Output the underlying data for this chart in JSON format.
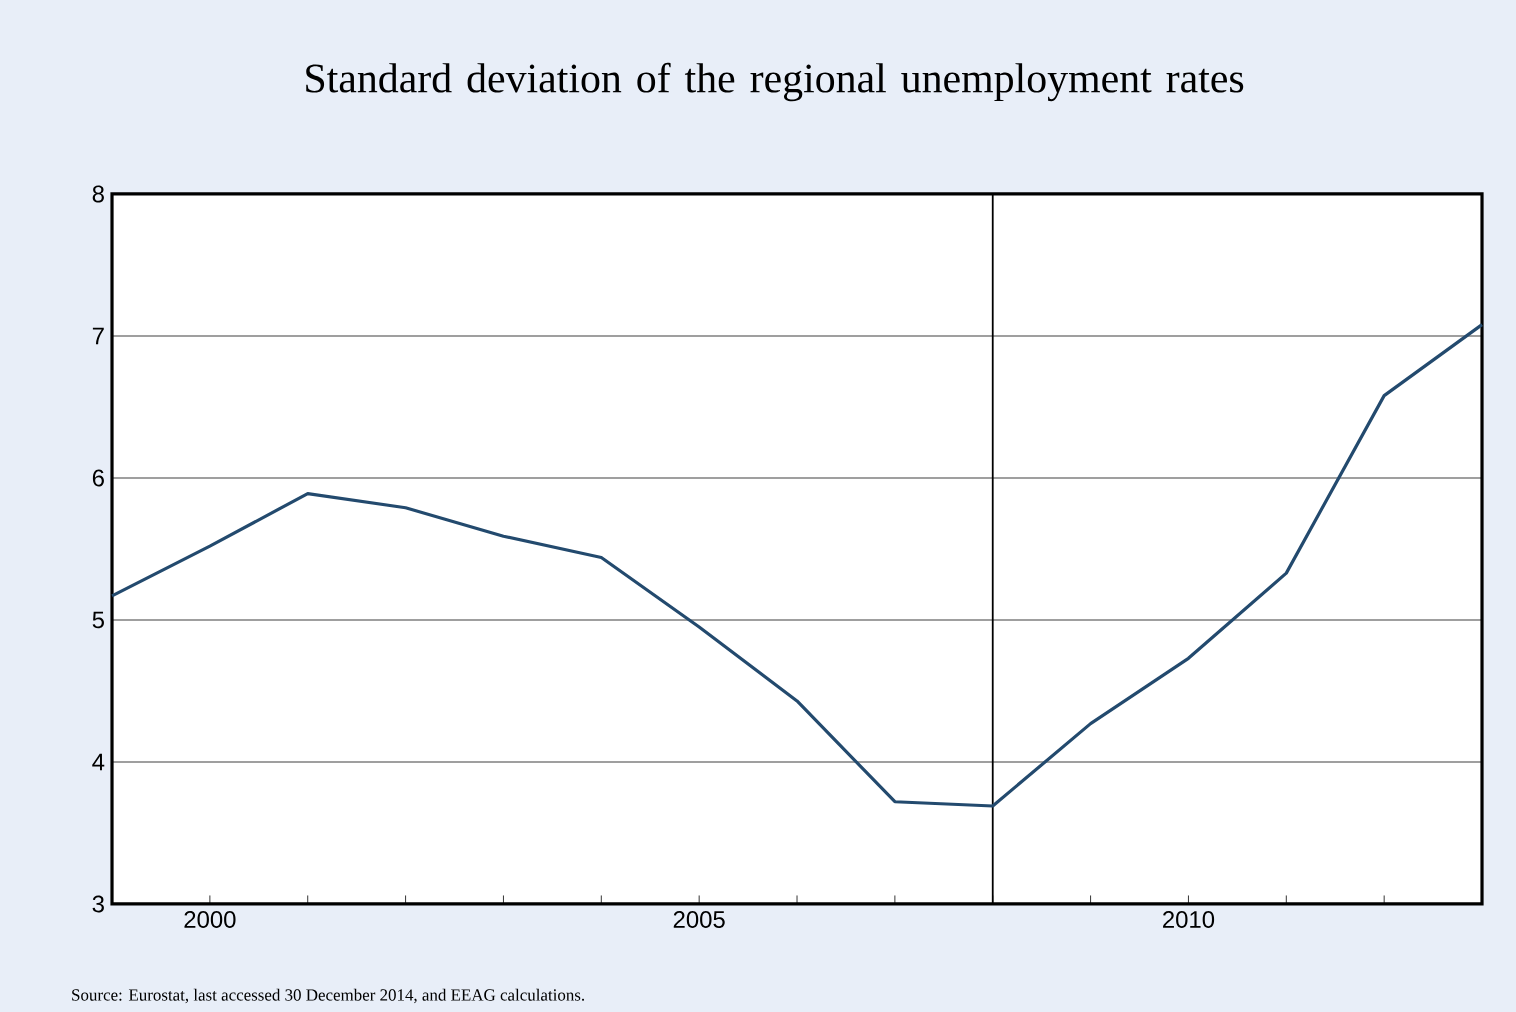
{
  "chart_data": {
    "type": "line",
    "title": "Standard deviation of the regional unemployment rates",
    "x": [
      1999,
      2000,
      2001,
      2002,
      2003,
      2004,
      2005,
      2006,
      2007,
      2008,
      2009,
      2010,
      2011,
      2012,
      2013
    ],
    "series": [
      {
        "color": "#234a6e",
        "values": [
          5.17,
          5.52,
          5.89,
          5.79,
          5.59,
          5.44,
          4.95,
          4.43,
          3.72,
          3.69,
          4.27,
          4.73,
          5.33,
          6.58,
          7.08
        ]
      }
    ],
    "xlim": [
      1999,
      2013
    ],
    "xticks": [
      {
        "value": 2000,
        "label": "2000"
      },
      {
        "value": 2001,
        "label": null
      },
      {
        "value": 2002,
        "label": null
      },
      {
        "value": 2003,
        "label": null
      },
      {
        "value": 2004,
        "label": null
      },
      {
        "value": 2005,
        "label": "2005"
      },
      {
        "value": 2006,
        "label": null
      },
      {
        "value": 2007,
        "label": null
      },
      {
        "value": 2008,
        "label": null
      },
      {
        "value": 2009,
        "label": null
      },
      {
        "value": 2010,
        "label": "2010"
      },
      {
        "value": 2011,
        "label": null
      },
      {
        "value": 2012,
        "label": null
      }
    ],
    "ylim": [
      3,
      8
    ],
    "yticks": [
      3,
      4,
      5,
      6,
      7,
      8
    ],
    "grid": "y",
    "ref_lines": [
      {
        "axis": "x",
        "value": 2008,
        "color": "#000000"
      }
    ],
    "annotations": [
      "Source: Eurostat, last accessed 30 December 2014, and EEAG calculations."
    ]
  }
}
